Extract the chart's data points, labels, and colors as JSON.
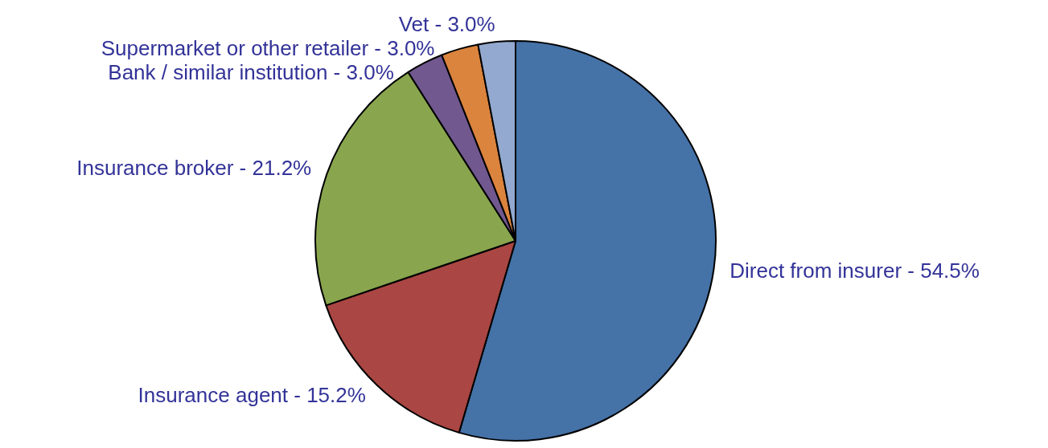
{
  "chart_data": {
    "type": "pie",
    "categories": [
      "Direct from insurer",
      "Insurance agent",
      "Insurance broker",
      "Bank / similar institution",
      "Supermarket or other retailer",
      "Vet"
    ],
    "values": [
      54.5,
      15.2,
      21.2,
      3.0,
      3.0,
      3.0
    ],
    "value_labels": [
      "54.5%",
      "15.2%",
      "21.2%",
      "3.0%",
      "3.0%",
      "3.0%"
    ],
    "colors": [
      "#4572a7",
      "#aa4643",
      "#89a54e",
      "#71588f",
      "#db843d",
      "#93a9cf"
    ],
    "legend": false
  }
}
